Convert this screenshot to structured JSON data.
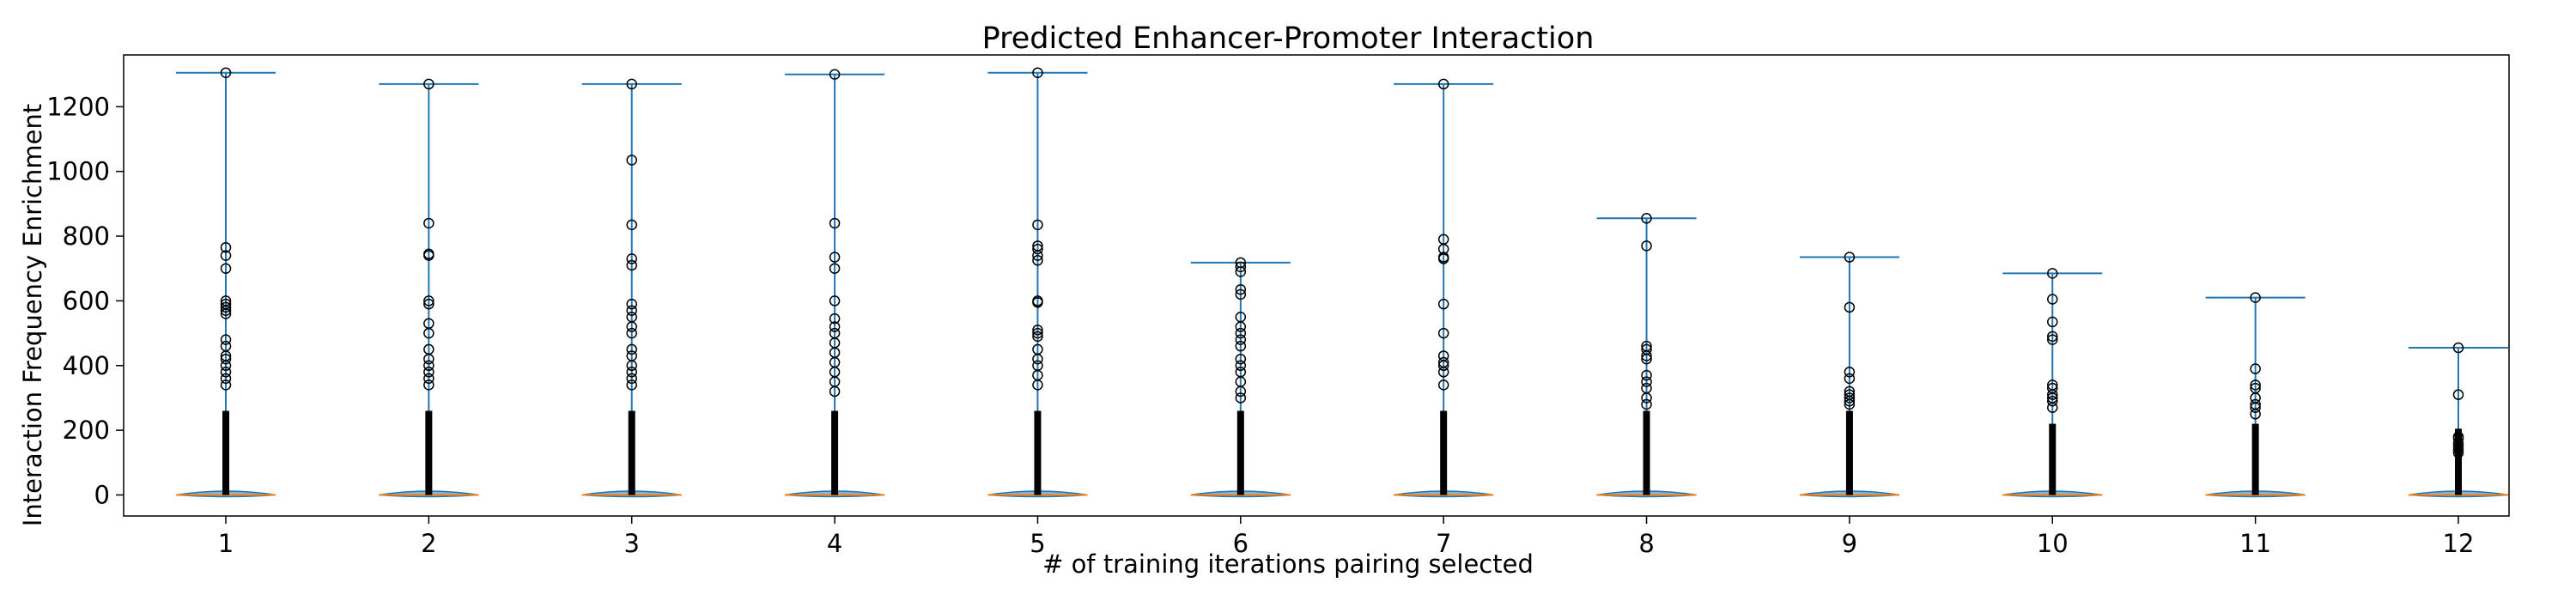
{
  "chart_data": {
    "type": "violin",
    "title": "Predicted Enhancer-Promoter Interaction",
    "xlabel": "# of training iterations pairing selected",
    "ylabel": "Interaction Frequency Enrichment",
    "ylim": [
      -65,
      1360
    ],
    "yticks": [
      0,
      200,
      400,
      600,
      800,
      1000,
      1200
    ],
    "grid": false,
    "colors": {
      "violin_body": "#1f77b4",
      "median": "#ff7f0e",
      "outlier_edge": "#000000"
    },
    "categories": [
      "1",
      "2",
      "3",
      "4",
      "5",
      "6",
      "7",
      "8",
      "9",
      "10",
      "11",
      "12"
    ],
    "series": [
      {
        "max": 1305,
        "outliers": [
          1305,
          765,
          740,
          700,
          600,
          590,
          580,
          570,
          560,
          480,
          460,
          430,
          420,
          400,
          380,
          360,
          340
        ]
      },
      {
        "max": 1270,
        "outliers": [
          1270,
          840,
          745,
          740,
          600,
          590,
          530,
          500,
          450,
          420,
          400,
          380,
          360,
          340
        ]
      },
      {
        "max": 1270,
        "outliers": [
          1270,
          1035,
          835,
          730,
          710,
          590,
          570,
          550,
          520,
          500,
          450,
          430,
          400,
          380,
          360,
          340
        ]
      },
      {
        "max": 1300,
        "outliers": [
          1300,
          840,
          735,
          700,
          600,
          545,
          520,
          500,
          470,
          440,
          410,
          380,
          350,
          320
        ]
      },
      {
        "max": 1305,
        "outliers": [
          1305,
          835,
          770,
          760,
          740,
          725,
          600,
          595,
          510,
          500,
          490,
          450,
          420,
          400,
          370,
          340
        ]
      },
      {
        "max": 718,
        "outliers": [
          718,
          705,
          690,
          635,
          620,
          550,
          520,
          500,
          480,
          460,
          420,
          400,
          380,
          350,
          320,
          300
        ]
      },
      {
        "max": 1270,
        "outliers": [
          1270,
          790,
          760,
          735,
          730,
          590,
          500,
          430,
          410,
          400,
          380,
          340
        ]
      },
      {
        "max": 855,
        "outliers": [
          855,
          770,
          460,
          450,
          430,
          420,
          370,
          350,
          330,
          300,
          280
        ]
      },
      {
        "max": 735,
        "outliers": [
          735,
          580,
          380,
          360,
          320,
          310,
          300,
          290,
          280
        ]
      },
      {
        "max": 685,
        "outliers": [
          685,
          605,
          535,
          490,
          480,
          340,
          330,
          310,
          300,
          290,
          270
        ]
      },
      {
        "max": 610,
        "outliers": [
          610,
          390,
          340,
          330,
          300,
          280,
          270,
          250
        ]
      },
      {
        "max": 455,
        "outliers": [
          455,
          310,
          180,
          175,
          160,
          150,
          140,
          130
        ]
      }
    ]
  }
}
